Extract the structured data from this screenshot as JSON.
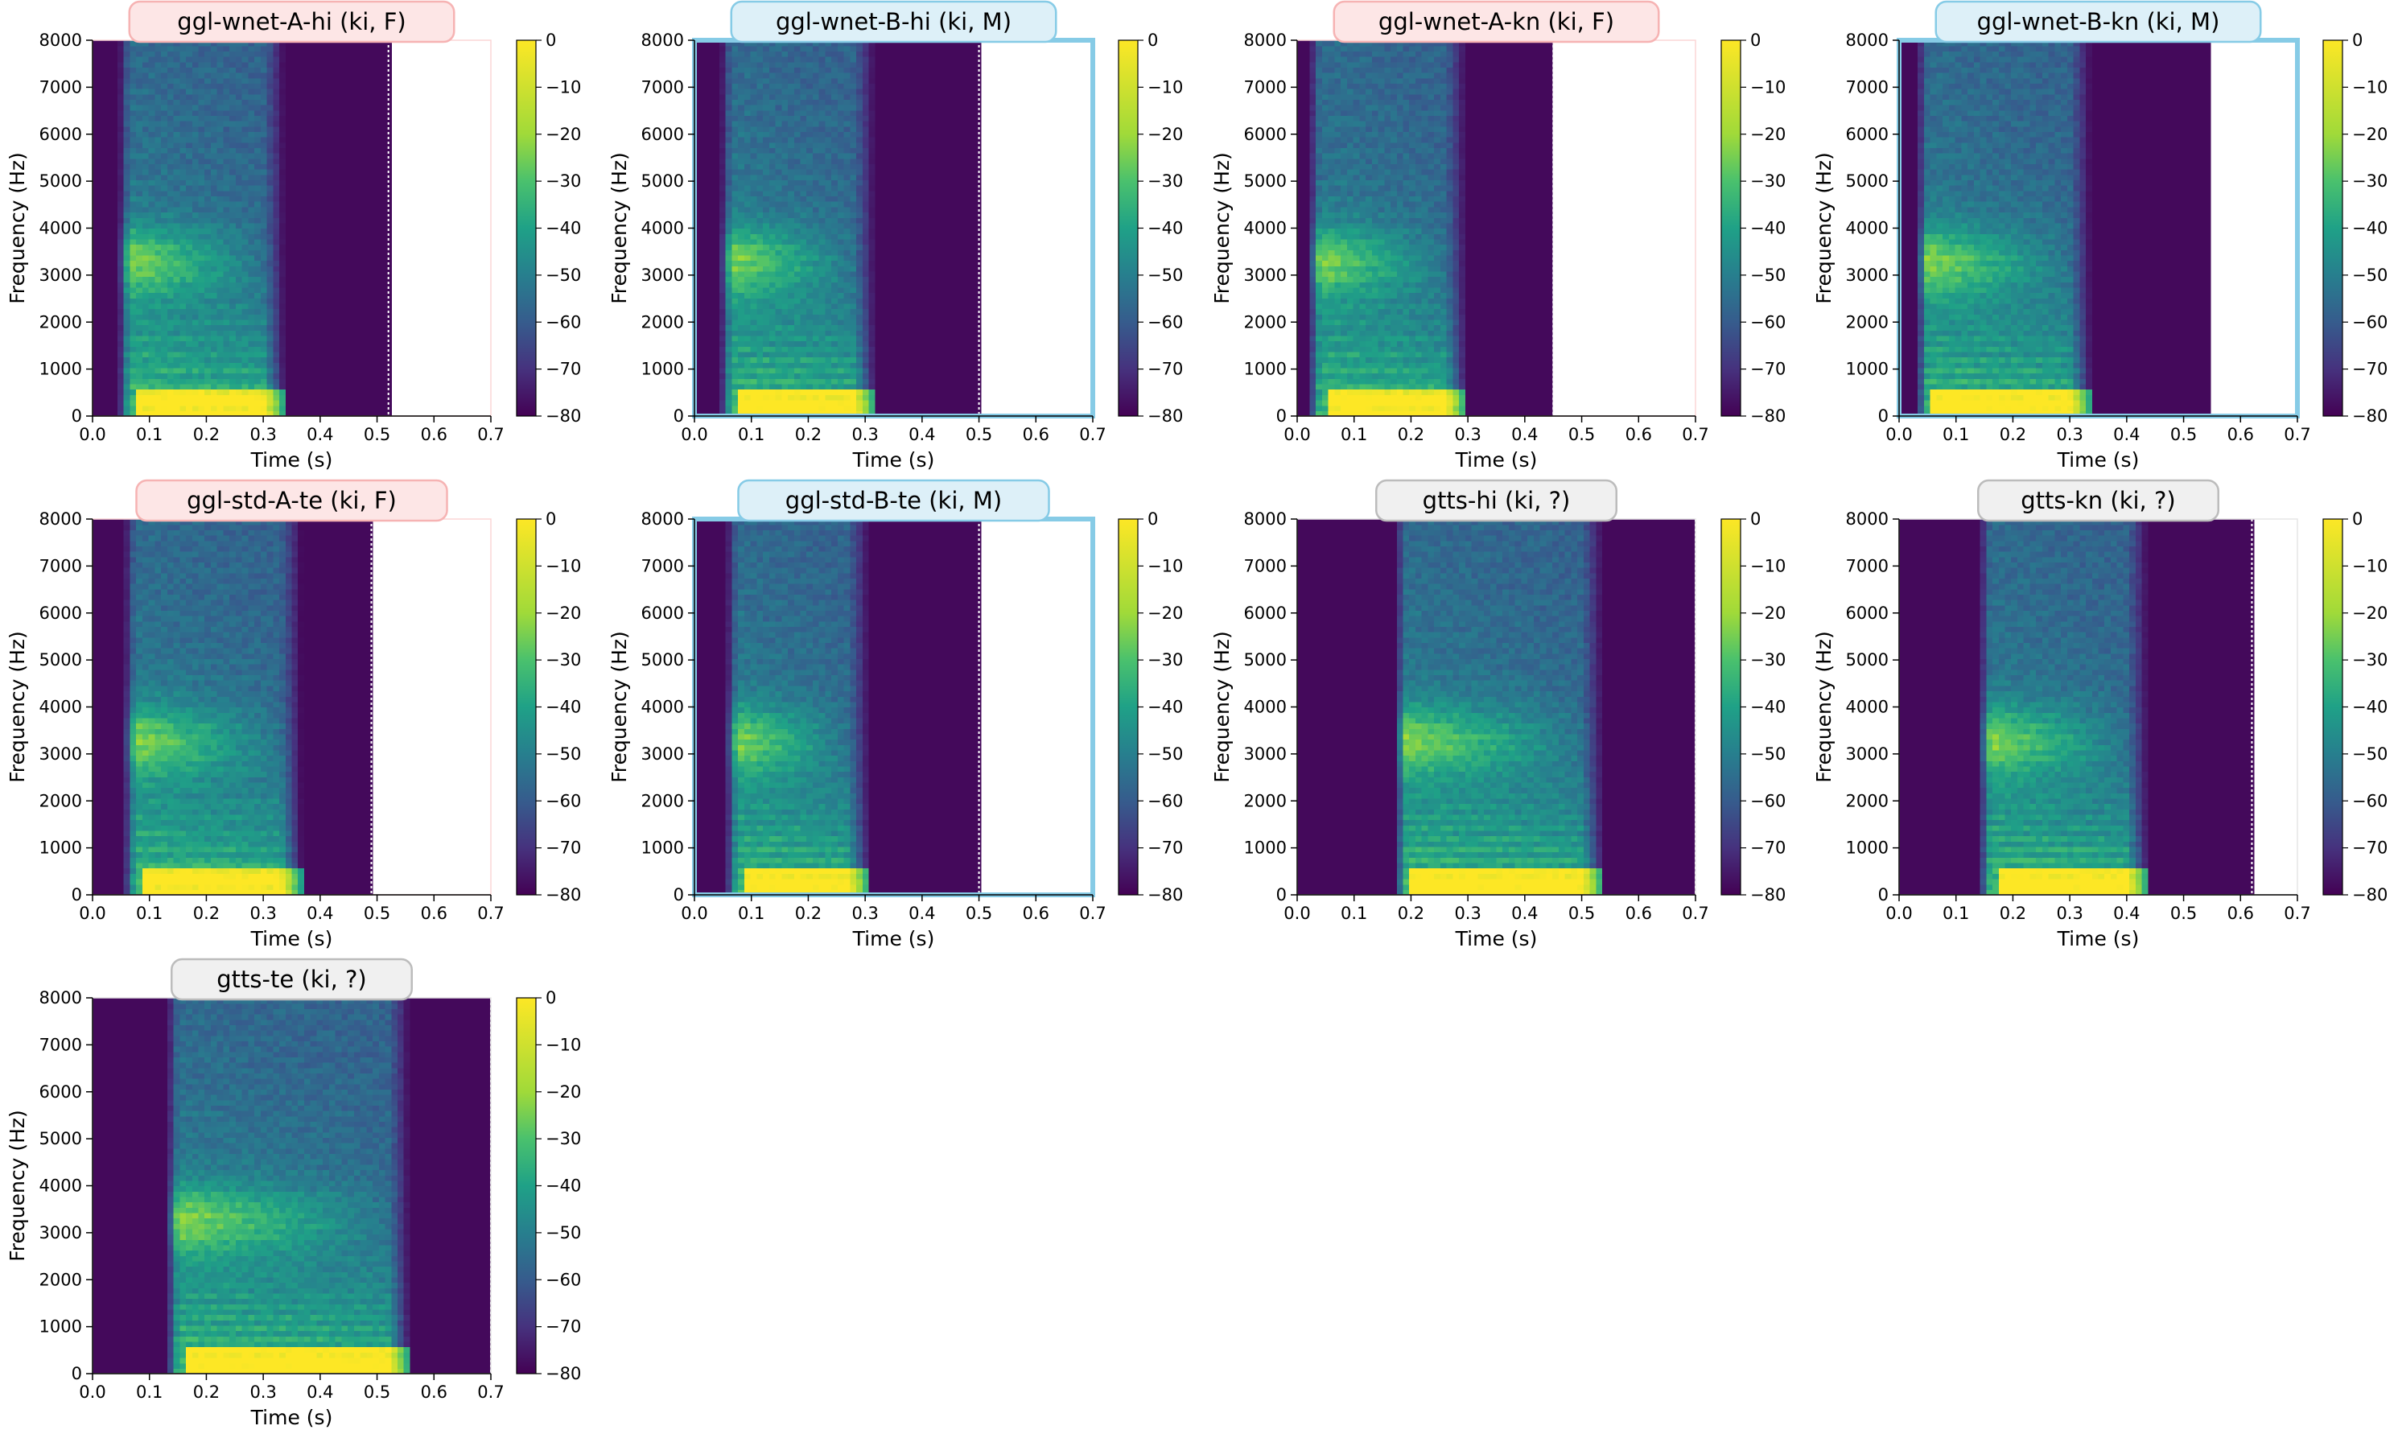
{
  "shared": {
    "xlabel": "Time (s)",
    "ylabel": "Frequency (Hz)",
    "x_ticks": [
      "0.0",
      "0.1",
      "0.2",
      "0.3",
      "0.4",
      "0.5",
      "0.6",
      "0.7"
    ],
    "y_ticks": [
      "0",
      "1000",
      "2000",
      "3000",
      "4000",
      "5000",
      "6000",
      "7000",
      "8000"
    ],
    "colorbar_ticks": [
      "0",
      "−10",
      "−20",
      "−30",
      "−40",
      "−50",
      "−60",
      "−70",
      "−80"
    ],
    "colormap": "viridis",
    "label_colors": {
      "F": {
        "fill": "#fde6e6",
        "stroke": "#f6b3b3"
      },
      "M": {
        "fill": "#ddf0f8",
        "stroke": "#86cbe6"
      },
      "?": {
        "fill": "#f0f0f0",
        "stroke": "#bcbcbc"
      }
    },
    "frame_color_M": "#86cbe6"
  },
  "chart_data": [
    {
      "type": "heatmap",
      "title": "ggl-wnet-A-hi (ki, F)",
      "xlabel": "Time (s)",
      "ylabel": "Frequency (Hz)",
      "xlim": [
        0,
        0.7
      ],
      "ylim": [
        0,
        8000
      ],
      "clim": [
        -80,
        0
      ],
      "voice": "F",
      "speech_start": 0.045,
      "speech_end": 0.3,
      "audio_end": 0.52
    },
    {
      "type": "heatmap",
      "title": "ggl-wnet-B-hi (ki, M)",
      "xlabel": "Time (s)",
      "ylabel": "Frequency (Hz)",
      "xlim": [
        0,
        0.7
      ],
      "ylim": [
        0,
        8000
      ],
      "clim": [
        -80,
        0
      ],
      "voice": "M",
      "speech_start": 0.045,
      "speech_end": 0.28,
      "audio_end": 0.5
    },
    {
      "type": "heatmap",
      "title": "ggl-wnet-A-kn (ki, F)",
      "xlabel": "Time (s)",
      "ylabel": "Frequency (Hz)",
      "xlim": [
        0,
        0.7
      ],
      "ylim": [
        0,
        8000
      ],
      "clim": [
        -80,
        0
      ],
      "voice": "F",
      "speech_start": 0.02,
      "speech_end": 0.26,
      "audio_end": 0.45
    },
    {
      "type": "heatmap",
      "title": "ggl-wnet-B-kn (ki, M)",
      "xlabel": "Time (s)",
      "ylabel": "Frequency (Hz)",
      "xlim": [
        0,
        0.7
      ],
      "ylim": [
        0,
        8000
      ],
      "clim": [
        -80,
        0
      ],
      "voice": "M",
      "speech_start": 0.03,
      "speech_end": 0.3,
      "audio_end": 0.55
    },
    {
      "type": "heatmap",
      "title": "ggl-std-A-te (ki, F)",
      "xlabel": "Time (s)",
      "ylabel": "Frequency (Hz)",
      "xlim": [
        0,
        0.7
      ],
      "ylim": [
        0,
        8000
      ],
      "clim": [
        -80,
        0
      ],
      "voice": "F",
      "speech_start": 0.055,
      "speech_end": 0.33,
      "audio_end": 0.49
    },
    {
      "type": "heatmap",
      "title": "ggl-std-B-te (ki, M)",
      "xlabel": "Time (s)",
      "ylabel": "Frequency (Hz)",
      "xlim": [
        0,
        0.7
      ],
      "ylim": [
        0,
        8000
      ],
      "clim": [
        -80,
        0
      ],
      "voice": "M",
      "speech_start": 0.055,
      "speech_end": 0.27,
      "audio_end": 0.5
    },
    {
      "type": "heatmap",
      "title": "gtts-hi (ki, ?)",
      "xlabel": "Time (s)",
      "ylabel": "Frequency (Hz)",
      "xlim": [
        0,
        0.7
      ],
      "ylim": [
        0,
        8000
      ],
      "clim": [
        -80,
        0
      ],
      "voice": "?",
      "speech_start": 0.17,
      "speech_end": 0.5,
      "audio_end": 0.7
    },
    {
      "type": "heatmap",
      "title": "gtts-kn (ki, ?)",
      "xlabel": "Time (s)",
      "ylabel": "Frequency (Hz)",
      "xlim": [
        0,
        0.7
      ],
      "ylim": [
        0,
        8000
      ],
      "clim": [
        -80,
        0
      ],
      "voice": "?",
      "speech_start": 0.14,
      "speech_end": 0.4,
      "audio_end": 0.62
    },
    {
      "type": "heatmap",
      "title": "gtts-te (ki, ?)",
      "xlabel": "Time (s)",
      "ylabel": "Frequency (Hz)",
      "xlim": [
        0,
        0.7
      ],
      "ylim": [
        0,
        8000
      ],
      "clim": [
        -80,
        0
      ],
      "voice": "?",
      "speech_start": 0.13,
      "speech_end": 0.52,
      "audio_end": 0.7
    }
  ]
}
